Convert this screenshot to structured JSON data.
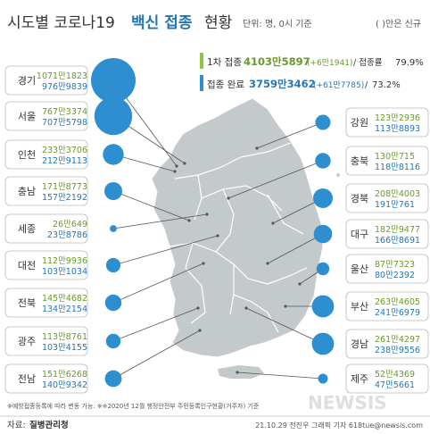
{
  "header": {
    "title_main": "시도별 코로나19",
    "title_bold": "백신 접종",
    "title_tail": "현황",
    "unit": "단위: 명, 0시 기준",
    "note": "( )안은 신규"
  },
  "summary": {
    "first": {
      "label": "1차 접종",
      "total": "4103만5897",
      "new": "(+6만1941)",
      "rate_label": "/ 접종률",
      "rate": "79.9%"
    },
    "full": {
      "label": "접종 완료",
      "total": "3759만3462",
      "new": "(+61만7785)",
      "rate_label": "/",
      "rate": "73.2%"
    }
  },
  "colors": {
    "first_accent": "#8dc63f",
    "full_accent": "#2e8fd0",
    "bubble": "#2e8fd0",
    "map_fill": "#c4c9cc",
    "leader": "#555555",
    "text_green": "#6a9a2a",
    "text_blue": "#2576b8"
  },
  "chart_data": {
    "type": "bubble-map",
    "value_legend": [
      "1차 접종",
      "접종 완료"
    ],
    "regions": [
      {
        "name": "경기",
        "first": "1071만1823",
        "full": "976만9839",
        "first_value": 10711823,
        "full_value": 9769839
      },
      {
        "name": "서울",
        "first": "767만3374",
        "full": "707만5798",
        "first_value": 7673374,
        "full_value": 7075798
      },
      {
        "name": "인천",
        "first": "233만3706",
        "full": "212만9113",
        "first_value": 2333706,
        "full_value": 2129113
      },
      {
        "name": "충남",
        "first": "171만8773",
        "full": "157만2192",
        "first_value": 1718773,
        "full_value": 1572192
      },
      {
        "name": "세종",
        "first": "26만649",
        "full": "23만8786",
        "first_value": 260649,
        "full_value": 238786
      },
      {
        "name": "대전",
        "first": "112만9936",
        "full": "103만1034",
        "first_value": 1129936,
        "full_value": 1031034
      },
      {
        "name": "전북",
        "first": "145만4682",
        "full": "134만2154",
        "first_value": 1454682,
        "full_value": 1342154
      },
      {
        "name": "광주",
        "first": "113만8761",
        "full": "103만4155",
        "first_value": 1138761,
        "full_value": 1034155
      },
      {
        "name": "전남",
        "first": "151만6268",
        "full": "140만9342",
        "first_value": 1516268,
        "full_value": 1409342
      },
      {
        "name": "강원",
        "first": "123만2936",
        "full": "113만8893",
        "first_value": 1232936,
        "full_value": 1138893
      },
      {
        "name": "충북",
        "first": "130만715",
        "full": "118만8116",
        "first_value": 1300715,
        "full_value": 1188116
      },
      {
        "name": "경북",
        "first": "208만4003",
        "full": "191만761",
        "first_value": 2084003,
        "full_value": 1910761
      },
      {
        "name": "대구",
        "first": "182만9477",
        "full": "166만8691",
        "first_value": 1829477,
        "full_value": 1668691
      },
      {
        "name": "울산",
        "first": "87만7323",
        "full": "80만2392",
        "first_value": 877323,
        "full_value": 802392
      },
      {
        "name": "부산",
        "first": "263만4605",
        "full": "241만6979",
        "first_value": 2634605,
        "full_value": 2416979
      },
      {
        "name": "경남",
        "first": "261만4297",
        "full": "238만9556",
        "first_value": 2614297,
        "full_value": 2389556
      },
      {
        "name": "제주",
        "first": "52만4369",
        "full": "47만5661",
        "first_value": 524369,
        "full_value": 475661
      }
    ]
  },
  "footer": {
    "note": "※예방접종등록에 따라 변동 가능. ※※2020년 12월 행정안전부 주민등록인구현황(거주자) 기준",
    "source_label": "자료:",
    "source": "질병관리청",
    "credit": "21.10.29 전진우 그래픽 기자 618tue@newsis.com",
    "watermark": "NEWSIS"
  }
}
